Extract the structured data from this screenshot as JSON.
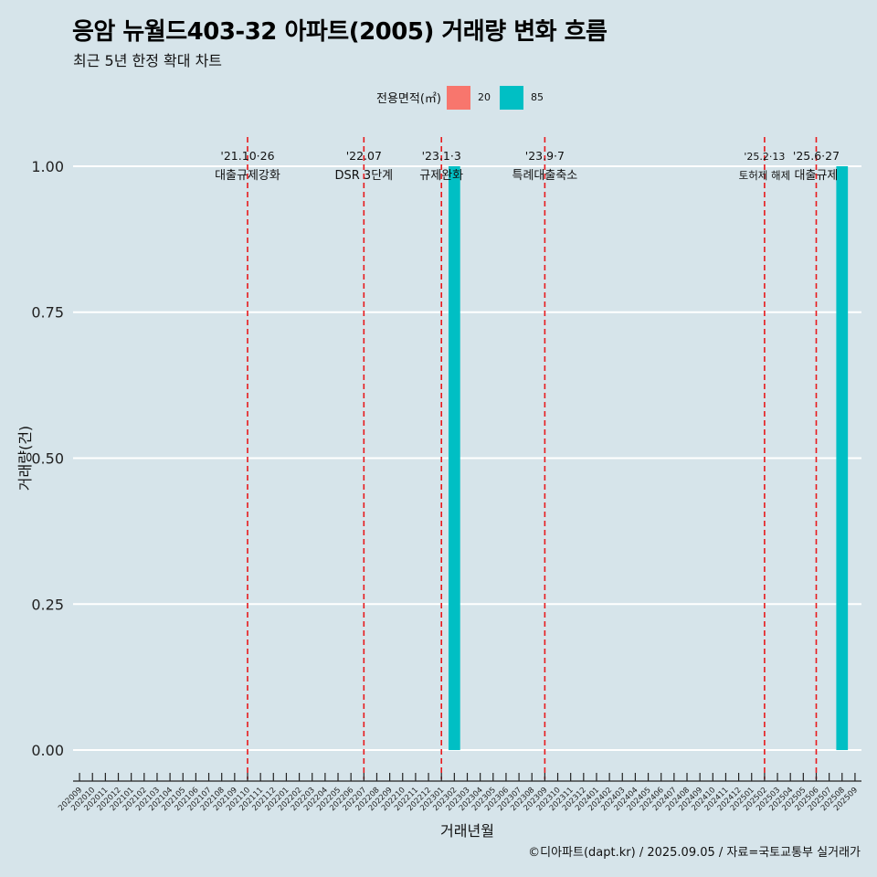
{
  "header": {
    "title": "응암 뉴월드403-32 아파트(2005) 거래량 변화 흐름",
    "subtitle": "최근 5년 한정 확대 차트"
  },
  "legend": {
    "title": "전용면적(㎡)",
    "items": [
      {
        "label": "20",
        "color": "#f8766d"
      },
      {
        "label": "85",
        "color": "#00bfc4"
      }
    ]
  },
  "caption": "©디아파트(dapt.kr) / 2025.09.05 / 자료=국토교통부 실거래가",
  "chart_data": {
    "type": "bar",
    "xlabel": "거래년월",
    "ylabel": "거래량(건)",
    "ylim": [
      -0.05,
      1.05
    ],
    "yticks": [
      "0.00",
      "0.25",
      "0.50",
      "0.75",
      "1.00"
    ],
    "ytick_values": [
      0,
      0.25,
      0.5,
      0.75,
      1.0
    ],
    "grid": "horizontal",
    "categories": [
      "202009",
      "202010",
      "202011",
      "202012",
      "202101",
      "202102",
      "202103",
      "202104",
      "202105",
      "202106",
      "202107",
      "202108",
      "202109",
      "202110",
      "202111",
      "202112",
      "202201",
      "202202",
      "202203",
      "202204",
      "202205",
      "202206",
      "202207",
      "202208",
      "202209",
      "202210",
      "202211",
      "202212",
      "202301",
      "202302",
      "202303",
      "202304",
      "202305",
      "202306",
      "202307",
      "202308",
      "202309",
      "202310",
      "202311",
      "202312",
      "202401",
      "202402",
      "202403",
      "202404",
      "202405",
      "202406",
      "202407",
      "202408",
      "202409",
      "202410",
      "202411",
      "202412",
      "202501",
      "202502",
      "202503",
      "202504",
      "202505",
      "202506",
      "202507",
      "202508",
      "202509"
    ],
    "series": [
      {
        "name": "85",
        "color": "#00bfc4",
        "points": [
          {
            "x": "202302",
            "value": 1
          },
          {
            "x": "202508",
            "value": 1
          }
        ]
      }
    ],
    "events": [
      {
        "x": "202110",
        "date": "'21.10·26",
        "label": "대출규제강화"
      },
      {
        "x": "202207",
        "date": "'22.07",
        "label": "DSR 3단계"
      },
      {
        "x": "202301",
        "date": "'23.1·3",
        "label": "규제완화"
      },
      {
        "x": "202309",
        "date": "'23.9·7",
        "label": "특례대출축소"
      },
      {
        "x": "202502",
        "date": "'25.2·13",
        "label": "토허제 해제"
      },
      {
        "x": "202506",
        "date": "'25.6·27",
        "label": "대출규제"
      }
    ]
  }
}
